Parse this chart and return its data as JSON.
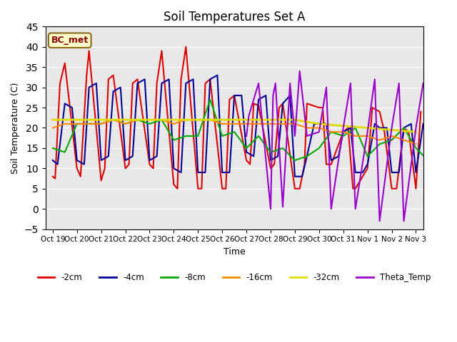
{
  "title": "Soil Temperatures Set A",
  "xlabel": "Time",
  "ylabel": "Soil Temperature (C)",
  "annotation": "BC_met",
  "ylim": [
    -5,
    45
  ],
  "background_color": "#e8e8e8",
  "tick_labels": [
    "Oct 19",
    "Oct 20",
    "Oct 21",
    "Oct 22",
    "Oct 23",
    "Oct 24",
    "Oct 25",
    "Oct 26",
    "Oct 27",
    "Oct 28",
    "Oct 29",
    "Oct 30",
    "Oct 31",
    "Nov 1",
    "Nov 2",
    "Nov 3"
  ],
  "series": {
    "2cm": {
      "color": "#dd0000",
      "lw": 1.5,
      "label": "-2cm"
    },
    "4cm": {
      "color": "#000099",
      "lw": 1.5,
      "label": "-4cm"
    },
    "8cm": {
      "color": "#00aa00",
      "lw": 1.5,
      "label": "-8cm"
    },
    "16cm": {
      "color": "#ff8800",
      "lw": 1.5,
      "label": "-16cm"
    },
    "32cm": {
      "color": "#dddd00",
      "lw": 2.0,
      "label": "-32cm"
    },
    "theta": {
      "color": "#9900cc",
      "lw": 1.5,
      "label": "Theta_Temp"
    }
  },
  "x_2cm": [
    0,
    0.1,
    0.3,
    0.5,
    1.0,
    1.15,
    1.4,
    1.5,
    2.0,
    2.15,
    2.3,
    2.5,
    3.0,
    3.15,
    3.3,
    3.5,
    4.0,
    4.15,
    4.3,
    4.5,
    5.0,
    5.15,
    5.3,
    5.5,
    6.0,
    6.15,
    6.3,
    6.5,
    7.0,
    7.15,
    7.3,
    7.5,
    8.0,
    8.15,
    8.3,
    8.5,
    9.0,
    9.15,
    9.35,
    9.5,
    10.0,
    10.2,
    10.4,
    10.5,
    11.0,
    11.15,
    11.3,
    11.5,
    12.0,
    12.2,
    12.4,
    12.5,
    13.0,
    13.2,
    13.5,
    13.7,
    14.0,
    14.2,
    14.5,
    14.7,
    15.0,
    15.2
  ],
  "y_2cm": [
    8,
    7.5,
    31,
    36,
    10,
    8,
    33,
    39,
    7,
    10,
    32,
    33,
    10,
    11,
    31,
    32,
    11,
    10,
    31,
    39,
    6,
    5,
    32,
    40,
    5,
    5,
    31,
    32,
    5,
    5,
    27,
    28,
    12,
    11,
    26,
    25.5,
    10,
    11,
    25,
    26,
    5,
    5,
    11,
    26,
    25,
    25,
    11,
    11,
    19,
    20,
    5,
    5,
    10,
    25,
    24,
    19,
    5,
    5,
    20,
    19,
    5,
    24
  ],
  "x_4cm": [
    0,
    0.2,
    0.5,
    0.8,
    1.0,
    1.3,
    1.5,
    1.8,
    2.0,
    2.3,
    2.5,
    2.8,
    3.0,
    3.3,
    3.5,
    3.8,
    4.0,
    4.3,
    4.5,
    4.8,
    5.0,
    5.3,
    5.5,
    5.8,
    6.0,
    6.3,
    6.5,
    6.8,
    7.0,
    7.3,
    7.5,
    7.8,
    8.0,
    8.3,
    8.5,
    8.8,
    9.0,
    9.3,
    9.5,
    9.8,
    10.0,
    10.3,
    10.5,
    10.8,
    11.0,
    11.3,
    11.5,
    11.8,
    12.0,
    12.3,
    12.5,
    12.8,
    13.0,
    13.3,
    13.5,
    13.8,
    14.0,
    14.3,
    14.5,
    14.8,
    15.0,
    15.3
  ],
  "y_4cm": [
    12,
    11,
    26,
    25,
    12,
    11,
    30,
    31,
    12,
    13,
    29,
    30,
    12,
    13,
    31,
    32,
    12,
    13,
    31,
    32,
    10,
    9,
    31,
    32,
    9,
    9,
    32,
    33,
    9,
    9,
    28,
    28,
    14,
    13,
    27,
    28,
    12,
    13,
    26,
    28,
    8,
    8,
    13,
    21,
    21,
    21,
    12,
    13,
    19,
    20,
    9,
    9,
    11,
    21,
    20,
    20,
    9,
    9,
    20,
    21,
    9,
    21
  ],
  "x_8cm": [
    0,
    0.5,
    1.0,
    1.5,
    2.0,
    2.5,
    3.0,
    3.5,
    4.0,
    4.5,
    5.0,
    5.5,
    6.0,
    6.5,
    7.0,
    7.5,
    8.0,
    8.5,
    9.0,
    9.5,
    10.0,
    10.5,
    11.0,
    11.5,
    12.0,
    12.5,
    13.0,
    13.5,
    14.0,
    14.5,
    15.0,
    15.5
  ],
  "y_8cm": [
    15,
    14,
    21,
    21,
    21,
    22,
    21,
    22,
    21,
    22,
    17,
    18,
    18,
    27,
    18,
    19,
    15,
    18,
    14,
    15,
    12,
    13,
    15,
    19,
    18,
    20,
    13,
    16,
    17,
    20,
    15,
    12
  ],
  "x_16cm": [
    0,
    0.5,
    1.0,
    1.5,
    2.0,
    2.5,
    3.0,
    3.5,
    4.0,
    4.5,
    5.0,
    5.5,
    6.0,
    6.5,
    7.0,
    7.5,
    8.0,
    8.5,
    9.0,
    9.5,
    10.0,
    10.5,
    11.0,
    11.5,
    12.0,
    12.5,
    13.0,
    13.5,
    14.0,
    14.5,
    15.0
  ],
  "y_16cm": [
    20,
    21,
    21,
    21,
    21,
    22,
    21,
    22,
    22,
    22,
    21,
    22,
    22,
    22,
    21,
    21,
    21,
    21,
    21,
    21,
    21,
    20,
    20,
    19,
    19,
    18,
    18,
    17,
    18,
    17,
    16
  ],
  "x_32cm": [
    0,
    1,
    2,
    3,
    4,
    5,
    6,
    7,
    8,
    9,
    10,
    11,
    12,
    13,
    14,
    15
  ],
  "y_32cm": [
    22,
    22,
    22,
    22,
    22,
    22,
    22,
    22,
    22,
    22,
    22,
    21,
    20.5,
    20,
    19.5,
    19
  ],
  "x_theta": [
    8.0,
    8.1,
    8.5,
    9.0,
    9.1,
    9.2,
    9.5,
    9.8,
    10.0,
    10.2,
    10.5,
    11.0,
    11.3,
    11.5,
    12.0,
    12.3,
    12.5,
    13.0,
    13.3,
    13.5,
    14.0,
    14.3,
    14.5,
    15.0,
    15.3
  ],
  "y_theta": [
    18,
    23,
    31,
    0,
    28,
    31,
    0.5,
    31,
    18,
    34,
    18,
    19,
    30,
    0,
    20,
    31,
    0,
    19,
    32,
    -3,
    20,
    31,
    -3,
    20,
    31
  ]
}
